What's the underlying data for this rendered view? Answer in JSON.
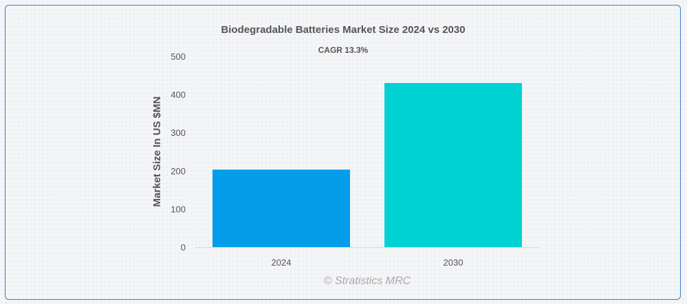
{
  "chart_data": {
    "type": "bar",
    "title": "Biodegradable Batteries Market Size 2024 vs 2030",
    "subtitle": "CAGR 13.3%",
    "xlabel": "",
    "ylabel": "Market Size In US $MN",
    "categories": [
      "2024",
      "2030"
    ],
    "values": [
      203,
      430
    ],
    "colors": [
      "#039de9",
      "#00d2d4"
    ],
    "ylim": [
      0,
      500
    ],
    "yticks": [
      0,
      100,
      200,
      300,
      400,
      500
    ],
    "grid": false,
    "legend": "none"
  },
  "credit": "© Stratistics MRC"
}
